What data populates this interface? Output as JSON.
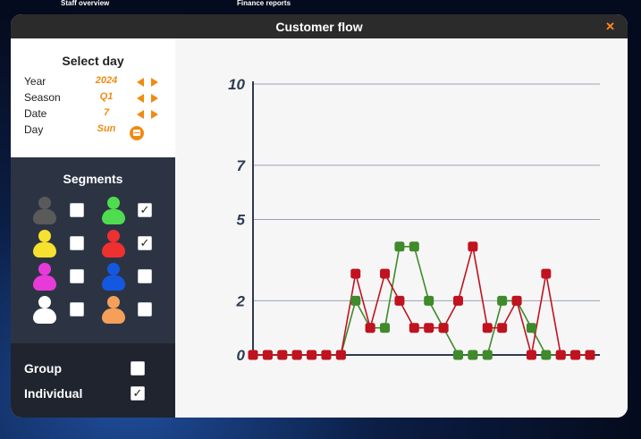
{
  "topnav": {
    "staff": "Staff overview",
    "finance": "Finance reports"
  },
  "modal": {
    "title": "Customer flow",
    "close_icon": "close-icon"
  },
  "day_select": {
    "title": "Select day",
    "rows": [
      {
        "label": "Year",
        "value": "2024"
      },
      {
        "label": "Season",
        "value": "Q1"
      },
      {
        "label": "Date",
        "value": "7"
      },
      {
        "label": "Day",
        "value": "Sun"
      }
    ],
    "calendar_icon": "calendar-icon"
  },
  "segments": {
    "title": "Segments",
    "items": [
      {
        "icon": "person-gray-icon",
        "color": "#5a5a5a",
        "checked": false
      },
      {
        "icon": "person-green-icon",
        "color": "#4fdc4f",
        "checked": true
      },
      {
        "icon": "person-yellow-icon",
        "color": "#f5e12e",
        "checked": false
      },
      {
        "icon": "person-red-icon",
        "color": "#ee3030",
        "checked": true
      },
      {
        "icon": "person-magenta-icon",
        "color": "#e83ad8",
        "checked": false
      },
      {
        "icon": "person-blue-icon",
        "color": "#1558e0",
        "checked": false
      },
      {
        "icon": "person-white-icon",
        "color": "#ffffff",
        "checked": false
      },
      {
        "icon": "person-orange-icon",
        "color": "#f5a05a",
        "checked": false
      }
    ]
  },
  "mode": {
    "group": {
      "label": "Group",
      "checked": false
    },
    "individual": {
      "label": "Individual",
      "checked": true
    }
  },
  "chart_data": {
    "type": "line",
    "y_ticks": [
      "10",
      "7",
      "5",
      "2",
      "0"
    ],
    "ylim": [
      0,
      10
    ],
    "grid": true,
    "x": [
      0,
      1,
      2,
      3,
      4,
      5,
      6,
      7,
      8,
      9,
      10,
      11,
      12,
      13,
      14,
      15,
      16,
      17,
      18,
      19,
      20,
      21,
      22,
      23
    ],
    "series": [
      {
        "color": "#3f8a2a",
        "values": [
          0,
          0,
          0,
          0,
          0,
          0,
          0,
          2,
          1,
          1,
          4,
          4,
          2,
          1,
          0,
          0,
          0,
          2,
          2,
          1,
          0,
          0,
          0,
          0
        ]
      },
      {
        "color": "#c1121f",
        "values": [
          0,
          0,
          0,
          0,
          0,
          0,
          0,
          3,
          1,
          3,
          2,
          1,
          1,
          1,
          2,
          4,
          1,
          1,
          2,
          0,
          3,
          0,
          0,
          0
        ]
      }
    ]
  }
}
